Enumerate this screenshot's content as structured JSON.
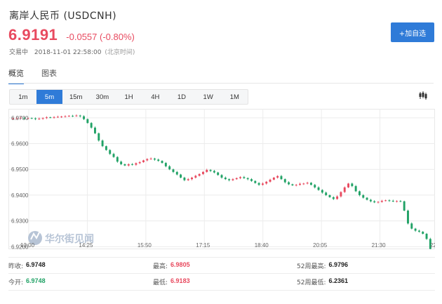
{
  "header": {
    "title": "离岸人民币 (USDCNH)",
    "price": "6.9191",
    "change": "-0.0557 (-0.80%)",
    "status": "交易中",
    "datetime": "2018-11-01 22:58:00",
    "timezone": "(北京时间)",
    "add_button": "+加自选"
  },
  "tabs": [
    "概览",
    "图表"
  ],
  "periods": [
    "1m",
    "5m",
    "15m",
    "30m",
    "1H",
    "4H",
    "1D",
    "1W",
    "1M"
  ],
  "active_period": "5m",
  "watermark": "华尔街见闻",
  "colors": {
    "up": "#e84a5f",
    "down": "#21a266",
    "accent": "#2f7bd8"
  },
  "stats": {
    "prev_close_label": "昨收:",
    "prev_close": "6.9748",
    "high_label": "最高:",
    "high": "6.9805",
    "high52_label": "52周最高:",
    "high52": "6.9796",
    "open_label": "今开:",
    "open": "6.9748",
    "low_label": "最低:",
    "low": "6.9183",
    "low52_label": "52周最低:",
    "low52": "6.2361"
  },
  "chart_data": {
    "type": "candlestick",
    "y_ticks": [
      "6.9700",
      "6.9600",
      "6.9500",
      "6.9400",
      "6.9300",
      "6.9200"
    ],
    "x_ticks": [
      "13:00",
      "14:25",
      "15:50",
      "17:15",
      "18:40",
      "20:05",
      "21:30",
      "22:5"
    ],
    "ylim": [
      6.919,
      6.9735
    ],
    "grid": true,
    "close_series": [
      6.9698,
      6.9699,
      6.97,
      6.9697,
      6.9699,
      6.9698,
      6.9695,
      6.9697,
      6.9699,
      6.9702,
      6.9701,
      6.9703,
      6.9704,
      6.9705,
      6.9706,
      6.9708,
      6.9707,
      6.9709,
      6.9706,
      6.9695,
      6.968,
      6.9662,
      6.964,
      6.9612,
      6.959,
      6.9575,
      6.956,
      6.9548,
      6.953,
      6.952,
      6.9515,
      6.952,
      6.9518,
      6.9524,
      6.9528,
      6.9535,
      6.954,
      6.9542,
      6.9538,
      6.9533,
      6.9525,
      6.9512,
      6.95,
      6.949,
      6.948,
      6.9468,
      6.9458,
      6.9462,
      6.9468,
      6.9475,
      6.9482,
      6.949,
      6.9498,
      6.9494,
      6.9488,
      6.9478,
      6.9468,
      6.9462,
      6.9458,
      6.9462,
      6.9466,
      6.947,
      6.9466,
      6.9462,
      6.9455,
      6.9447,
      6.944,
      6.9445,
      6.9452,
      6.946,
      6.9468,
      6.9474,
      6.9462,
      6.945,
      6.9442,
      6.9438,
      6.944,
      6.9444,
      6.9445,
      6.9448,
      6.944,
      6.943,
      6.942,
      6.941,
      6.94,
      6.9392,
      6.9385,
      6.9395,
      6.9412,
      6.943,
      6.9445,
      6.9435,
      6.9415,
      6.94,
      6.939,
      6.9382,
      6.9376,
      6.9372,
      6.9374,
      6.9378,
      6.938,
      6.9378,
      6.9376,
      6.9377,
      6.9376,
      6.934,
      6.929,
      6.927,
      6.9262,
      6.9258,
      6.925,
      6.923,
      6.9191
    ]
  }
}
